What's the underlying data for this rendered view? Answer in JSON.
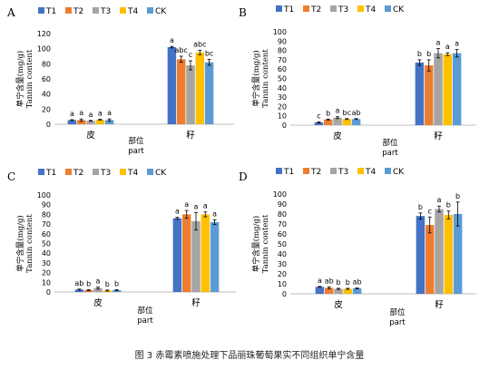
{
  "caption": "图 3   赤霉素喷施处理下品丽珠葡萄果实不同组织单宁含量",
  "colors": {
    "T1": "#4472C4",
    "T2": "#ED7D31",
    "T3": "#A5A5A5",
    "T4": "#FFC000",
    "CK": "#5B9BD5"
  },
  "chart_data": [
    {
      "panel": "A",
      "type": "bar",
      "legend": [
        "T1",
        "T2",
        "T3",
        "T4",
        "CK"
      ],
      "ylabel": [
        "单宁含量(mg/g)",
        "Tannin content"
      ],
      "xlabel": [
        "部位",
        "part"
      ],
      "categories": [
        "皮",
        "籽"
      ],
      "ylim": [
        0,
        120
      ],
      "yticks": [
        0,
        20,
        40,
        60,
        80,
        100,
        120
      ],
      "series": [
        {
          "name": "T1",
          "values": [
            5.5,
            102
          ],
          "errors": [
            0.5,
            1
          ],
          "letters": [
            "a",
            "a"
          ]
        },
        {
          "name": "T2",
          "values": [
            5.5,
            86
          ],
          "errors": [
            1.5,
            4
          ],
          "letters": [
            "a",
            "abc"
          ]
        },
        {
          "name": "T3",
          "values": [
            4.5,
            78
          ],
          "errors": [
            0.5,
            6
          ],
          "letters": [
            "a",
            "c"
          ]
        },
        {
          "name": "T4",
          "values": [
            6,
            95
          ],
          "errors": [
            0.5,
            3
          ],
          "letters": [
            "a",
            "abc"
          ]
        },
        {
          "name": "CK",
          "values": [
            5.5,
            82
          ],
          "errors": [
            1.5,
            4
          ],
          "letters": [
            "a",
            "bc"
          ]
        }
      ]
    },
    {
      "panel": "B",
      "type": "bar",
      "legend": [
        "T1",
        "T2",
        "T3",
        "T4",
        "CK"
      ],
      "ylabel": [
        "单宁含量(mg/g)",
        "Tannin content"
      ],
      "xlabel": [
        "部位",
        "part"
      ],
      "categories": [
        "皮",
        "籽"
      ],
      "ylim": [
        0,
        100
      ],
      "yticks": [
        0,
        10,
        20,
        30,
        40,
        50,
        60,
        70,
        80,
        90,
        100
      ],
      "series": [
        {
          "name": "T1",
          "values": [
            3,
            67
          ],
          "errors": [
            0.5,
            3
          ],
          "letters": [
            "c",
            "b"
          ]
        },
        {
          "name": "T2",
          "values": [
            6,
            64
          ],
          "errors": [
            0.5,
            6
          ],
          "letters": [
            "b",
            "b"
          ]
        },
        {
          "name": "T3",
          "values": [
            8,
            77
          ],
          "errors": [
            1,
            5
          ],
          "letters": [
            "a",
            "a"
          ]
        },
        {
          "name": "T4",
          "values": [
            6.5,
            76
          ],
          "errors": [
            0.5,
            1.5
          ],
          "letters": [
            "bc",
            "a"
          ]
        },
        {
          "name": "CK",
          "values": [
            6.5,
            77
          ],
          "errors": [
            0.5,
            4
          ],
          "letters": [
            "ab",
            "a"
          ]
        }
      ]
    },
    {
      "panel": "C",
      "type": "bar",
      "legend": [
        "T1",
        "T2",
        "T3",
        "T4",
        "CK"
      ],
      "ylabel": [
        "单宁含量(mg/g)",
        "Tannin content"
      ],
      "xlabel": [
        "部位",
        "part"
      ],
      "categories": [
        "皮",
        "籽"
      ],
      "ylim": [
        0,
        100
      ],
      "yticks": [
        0,
        10,
        20,
        30,
        40,
        50,
        60,
        70,
        80,
        90,
        100
      ],
      "series": [
        {
          "name": "T1",
          "values": [
            2.5,
            76
          ],
          "errors": [
            0.5,
            1
          ],
          "letters": [
            "ab",
            "a"
          ]
        },
        {
          "name": "T2",
          "values": [
            2,
            80
          ],
          "errors": [
            0.5,
            4
          ],
          "letters": [
            "b",
            "a"
          ]
        },
        {
          "name": "T3",
          "values": [
            4,
            73
          ],
          "errors": [
            1,
            9
          ],
          "letters": [
            "a",
            "a"
          ]
        },
        {
          "name": "T4",
          "values": [
            1.5,
            80
          ],
          "errors": [
            0.5,
            2.5
          ],
          "letters": [
            "b",
            "a"
          ]
        },
        {
          "name": "CK",
          "values": [
            2,
            72
          ],
          "errors": [
            0.5,
            2.5
          ],
          "letters": [
            "b",
            "a"
          ]
        }
      ]
    },
    {
      "panel": "D",
      "type": "bar",
      "legend": [
        "T1",
        "T2",
        "T3",
        "T4",
        "CK"
      ],
      "ylabel": [
        "单宁含量(mg/g)",
        "Tannin content"
      ],
      "xlabel": [
        "部位",
        "part"
      ],
      "categories": [
        "皮",
        "籽"
      ],
      "ylim": [
        0,
        100
      ],
      "yticks": [
        0,
        10,
        20,
        30,
        40,
        50,
        60,
        70,
        80,
        90,
        100
      ],
      "series": [
        {
          "name": "T1",
          "values": [
            7,
            78
          ],
          "errors": [
            0.5,
            3
          ],
          "letters": [
            "a",
            "b"
          ]
        },
        {
          "name": "T2",
          "values": [
            6,
            69
          ],
          "errors": [
            1,
            8
          ],
          "letters": [
            "ab",
            "c"
          ]
        },
        {
          "name": "T3",
          "values": [
            5,
            85
          ],
          "errors": [
            0.5,
            3
          ],
          "letters": [
            "b",
            "a"
          ]
        },
        {
          "name": "T4",
          "values": [
            5,
            79
          ],
          "errors": [
            0.5,
            4
          ],
          "letters": [
            "b",
            "b"
          ]
        },
        {
          "name": "CK",
          "values": [
            5.5,
            80
          ],
          "errors": [
            0.5,
            12
          ],
          "letters": [
            "ab",
            "b"
          ]
        }
      ]
    }
  ]
}
